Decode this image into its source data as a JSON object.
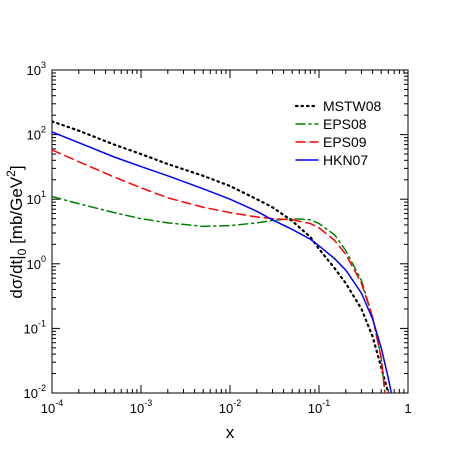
{
  "chart_data": {
    "type": "line",
    "xlabel": "x",
    "ylabel": {
      "main": "dσ/dt|",
      "sub": "0",
      "unit_open": " [mb/GeV",
      "unit_sup": "2",
      "unit_close": "]"
    },
    "xscale": "log",
    "yscale": "log",
    "xlim": [
      0.0001,
      1
    ],
    "ylim": [
      0.01,
      1000
    ],
    "x_ticks": [
      {
        "value": 0.0001,
        "base": "10",
        "exp": "-4"
      },
      {
        "value": 0.001,
        "base": "10",
        "exp": "-3"
      },
      {
        "value": 0.01,
        "base": "10",
        "exp": "-2"
      },
      {
        "value": 0.1,
        "base": "10",
        "exp": "-1"
      },
      {
        "value": 1,
        "base": "1",
        "exp": ""
      }
    ],
    "y_ticks": [
      {
        "value": 0.01,
        "base": "10",
        "exp": "-2"
      },
      {
        "value": 0.1,
        "base": "10",
        "exp": "-1"
      },
      {
        "value": 1,
        "base": "10",
        "exp": "0"
      },
      {
        "value": 10,
        "base": "10",
        "exp": "1"
      },
      {
        "value": 100,
        "base": "10",
        "exp": "2"
      },
      {
        "value": 1000,
        "base": "10",
        "exp": "3"
      }
    ],
    "legend_position": "top-right",
    "grid": false,
    "series": [
      {
        "name": "MSTW08",
        "color": "#000000",
        "dash": "dotted",
        "x": [
          0.0001,
          0.0002,
          0.0005,
          0.001,
          0.002,
          0.005,
          0.01,
          0.02,
          0.03,
          0.05,
          0.08,
          0.1,
          0.15,
          0.2,
          0.3,
          0.4,
          0.5,
          0.6
        ],
        "y": [
          160,
          115,
          70,
          50,
          35,
          23,
          16,
          10,
          7.5,
          4.6,
          2.6,
          1.7,
          0.85,
          0.5,
          0.2,
          0.075,
          0.025,
          0.01
        ]
      },
      {
        "name": "EPS08",
        "color": "#008000",
        "dash": "dashdot",
        "x": [
          0.0001,
          0.0002,
          0.0005,
          0.001,
          0.002,
          0.005,
          0.01,
          0.02,
          0.03,
          0.05,
          0.08,
          0.1,
          0.15,
          0.2,
          0.3,
          0.4,
          0.5,
          0.55
        ],
        "y": [
          11,
          8.5,
          6.2,
          5.0,
          4.3,
          3.8,
          3.9,
          4.3,
          4.7,
          5.0,
          4.8,
          4.2,
          2.8,
          1.6,
          0.55,
          0.15,
          0.035,
          0.01
        ]
      },
      {
        "name": "EPS09",
        "color": "#ff0000",
        "dash": "dashed",
        "x": [
          0.0001,
          0.0002,
          0.0005,
          0.001,
          0.002,
          0.005,
          0.01,
          0.02,
          0.03,
          0.05,
          0.08,
          0.1,
          0.15,
          0.2,
          0.3,
          0.4,
          0.5,
          0.55
        ],
        "y": [
          58,
          38,
          22,
          15,
          10.5,
          7.5,
          6.2,
          5.3,
          5.0,
          4.8,
          4.2,
          3.6,
          2.3,
          1.4,
          0.5,
          0.15,
          0.035,
          0.01
        ]
      },
      {
        "name": "HKN07",
        "color": "#0000ff",
        "dash": "solid",
        "x": [
          0.0001,
          0.0002,
          0.0005,
          0.001,
          0.002,
          0.005,
          0.01,
          0.02,
          0.03,
          0.05,
          0.08,
          0.1,
          0.15,
          0.2,
          0.3,
          0.4,
          0.5,
          0.6,
          0.65
        ],
        "y": [
          110,
          75,
          45,
          32,
          23,
          14.5,
          10,
          6.5,
          4.8,
          3.4,
          2.4,
          1.9,
          1.2,
          0.8,
          0.35,
          0.14,
          0.05,
          0.017,
          0.01
        ]
      }
    ]
  }
}
